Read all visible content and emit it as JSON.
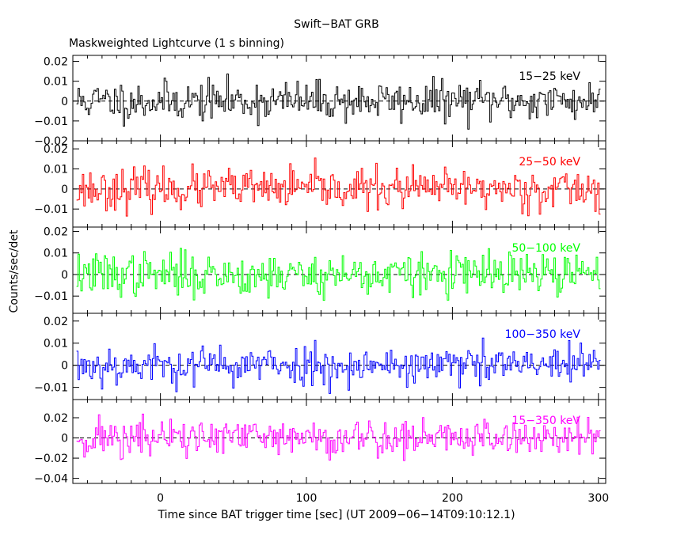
{
  "chart_data": {
    "type": "line",
    "title": "Swift−BAT GRB",
    "subtitle": "Maskweighted Lightcurve (1 s binning)",
    "xlabel": "Time since BAT trigger time [sec] (UT 2009−06−14T09:10:12.1)",
    "ylabel": "Counts/sec/det",
    "xlim": [
      -60,
      305
    ],
    "xticks_major": [
      0,
      100,
      200,
      300
    ],
    "xtick_labels": [
      "0",
      "100",
      "200",
      "300"
    ],
    "grid": false,
    "zero_line": "dashed",
    "binning_seconds": 1,
    "x_start": -57,
    "x_end": 301,
    "panels": [
      {
        "band": "15−25 keV",
        "color": "#000000",
        "ylim": [
          -0.02,
          0.023
        ],
        "yticks": [
          0.02,
          0.01,
          0,
          -0.01,
          -0.02
        ],
        "ytick_labels": [
          "0.02",
          "0.01",
          "0",
          "−0.01",
          "−0.02"
        ],
        "noise_sigma": 0.005,
        "seed": 11
      },
      {
        "band": "25−50 keV",
        "color": "#ff0000",
        "ylim": [
          -0.019,
          0.024
        ],
        "yticks": [
          0.02,
          0.01,
          0,
          -0.01
        ],
        "ytick_labels": [
          "0.02",
          "0.01",
          "0",
          "−0.01"
        ],
        "noise_sigma": 0.005,
        "seed": 23
      },
      {
        "band": "50−100 keV",
        "color": "#00ff00",
        "ylim": [
          -0.018,
          0.022
        ],
        "yticks": [
          0.02,
          0.01,
          0,
          -0.01
        ],
        "ytick_labels": [
          "0.02",
          "0.01",
          "0",
          "−0.01"
        ],
        "noise_sigma": 0.005,
        "seed": 37
      },
      {
        "band": "100−350 keV",
        "color": "#0000ff",
        "ylim": [
          -0.0155,
          0.0235
        ],
        "yticks": [
          0.02,
          0.01,
          0,
          -0.01
        ],
        "ytick_labels": [
          "0.02",
          "0.01",
          "0",
          "−0.01"
        ],
        "noise_sigma": 0.0045,
        "seed": 53
      },
      {
        "band": "15−350 keV",
        "color": "#ff00ff",
        "ylim": [
          -0.045,
          0.038
        ],
        "yticks": [
          0.02,
          0,
          -0.02,
          -0.04
        ],
        "ytick_labels": [
          "0.02",
          "0",
          "−0.02",
          "−0.04"
        ],
        "noise_sigma": 0.01,
        "seed": 71
      }
    ]
  }
}
